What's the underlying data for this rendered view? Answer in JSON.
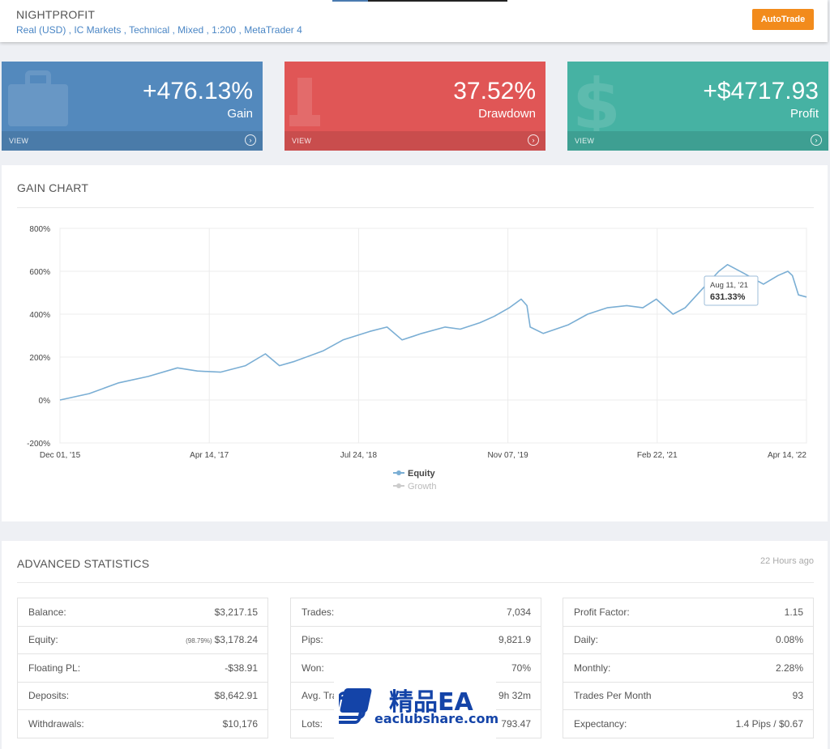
{
  "header": {
    "name": "NIGHTPROFIT",
    "subtitle": "Real (USD) , IC Markets , Technical , Mixed , 1:200 , MetaTrader 4",
    "autotrade_label": "AutoTrade"
  },
  "cards": [
    {
      "value": "+476.13%",
      "label": "Gain",
      "view": "VIEW",
      "icon": "briefcase-icon",
      "color": "#5389bd"
    },
    {
      "value": "37.52%",
      "label": "Drawdown",
      "view": "VIEW",
      "icon": "percent-icon",
      "color": "#e05656"
    },
    {
      "value": "+$4717.93",
      "label": "Profit",
      "view": "VIEW",
      "icon": "dollar-icon",
      "color": "#46b2a3"
    }
  ],
  "gain_chart": {
    "title": "GAIN CHART",
    "tooltip": {
      "date": "Aug 11, '21",
      "value": "631.33%"
    }
  },
  "chart_data": {
    "type": "line",
    "title": "",
    "xlabel": "",
    "ylabel": "",
    "ylim": [
      -200,
      800
    ],
    "y_ticks": [
      "800%",
      "600%",
      "400%",
      "200%",
      "0%",
      "-200%"
    ],
    "x_ticks": [
      "Dec 01, '15",
      "Apr 14, '17",
      "Jul 24, '18",
      "Nov 07, '19",
      "Feb 22, '21",
      "Apr 14, '22"
    ],
    "grid": true,
    "legend": [
      "Equity",
      "Growth"
    ],
    "legend_placement": "bottom",
    "series": [
      {
        "name": "Equity",
        "color": "#7aaed4",
        "x": [
          "2015-12-01",
          "2016-03-01",
          "2016-06-01",
          "2016-09-01",
          "2016-12-01",
          "2017-02-01",
          "2017-04-14",
          "2017-07-01",
          "2017-09-01",
          "2017-10-15",
          "2017-12-01",
          "2018-03-01",
          "2018-05-01",
          "2018-07-24",
          "2018-09-15",
          "2018-11-01",
          "2019-01-01",
          "2019-03-15",
          "2019-05-01",
          "2019-07-01",
          "2019-08-15",
          "2019-10-01",
          "2019-11-07",
          "2019-11-25",
          "2019-12-05",
          "2020-01-15",
          "2020-04-01",
          "2020-06-01",
          "2020-08-01",
          "2020-10-01",
          "2020-11-20",
          "2021-01-01",
          "2021-02-22",
          "2021-04-01",
          "2021-06-01",
          "2021-07-15",
          "2021-08-11",
          "2021-10-01",
          "2021-12-01",
          "2022-01-15",
          "2022-02-15",
          "2022-03-01",
          "2022-03-20",
          "2022-04-14"
        ],
        "values": [
          0,
          30,
          80,
          110,
          150,
          135,
          130,
          160,
          215,
          160,
          180,
          230,
          280,
          320,
          340,
          280,
          310,
          340,
          330,
          360,
          390,
          430,
          470,
          440,
          340,
          310,
          350,
          400,
          430,
          440,
          430,
          470,
          400,
          430,
          530,
          600,
          631,
          590,
          540,
          580,
          600,
          580,
          490,
          480
        ]
      },
      {
        "name": "Growth",
        "color": "#cccccc",
        "x": [],
        "values": []
      }
    ]
  },
  "stats": {
    "title": "ADVANCED STATISTICS",
    "updated": "22 Hours ago",
    "col1": [
      {
        "label": "Balance:",
        "value": "$3,217.15"
      },
      {
        "label": "Equity:",
        "note": "(98.79%)",
        "value": "$3,178.24"
      },
      {
        "label": "Floating PL:",
        "value": "-$38.91"
      },
      {
        "label": "Deposits:",
        "value": "$8,642.91"
      },
      {
        "label": "Withdrawals:",
        "value": "$10,176"
      }
    ],
    "col2": [
      {
        "label": "Trades:",
        "value": "7,034"
      },
      {
        "label": "Pips:",
        "value": "9,821.9"
      },
      {
        "label": "Won:",
        "value": "70%"
      },
      {
        "label": "Avg. Tra",
        "value": "9h 32m"
      },
      {
        "label": "Lots:",
        "value": "793.47"
      }
    ],
    "col3": [
      {
        "label": "Profit Factor:",
        "value": "1.15"
      },
      {
        "label": "Daily:",
        "value": "0.08%"
      },
      {
        "label": "Monthly:",
        "value": "2.28%"
      },
      {
        "label": "Trades Per Month",
        "value": "93"
      },
      {
        "label": "Expectancy:",
        "value": "1.4 Pips / $0.67"
      }
    ]
  },
  "watermark": {
    "main": "精品EA",
    "sub": "eaclubshare.com"
  }
}
